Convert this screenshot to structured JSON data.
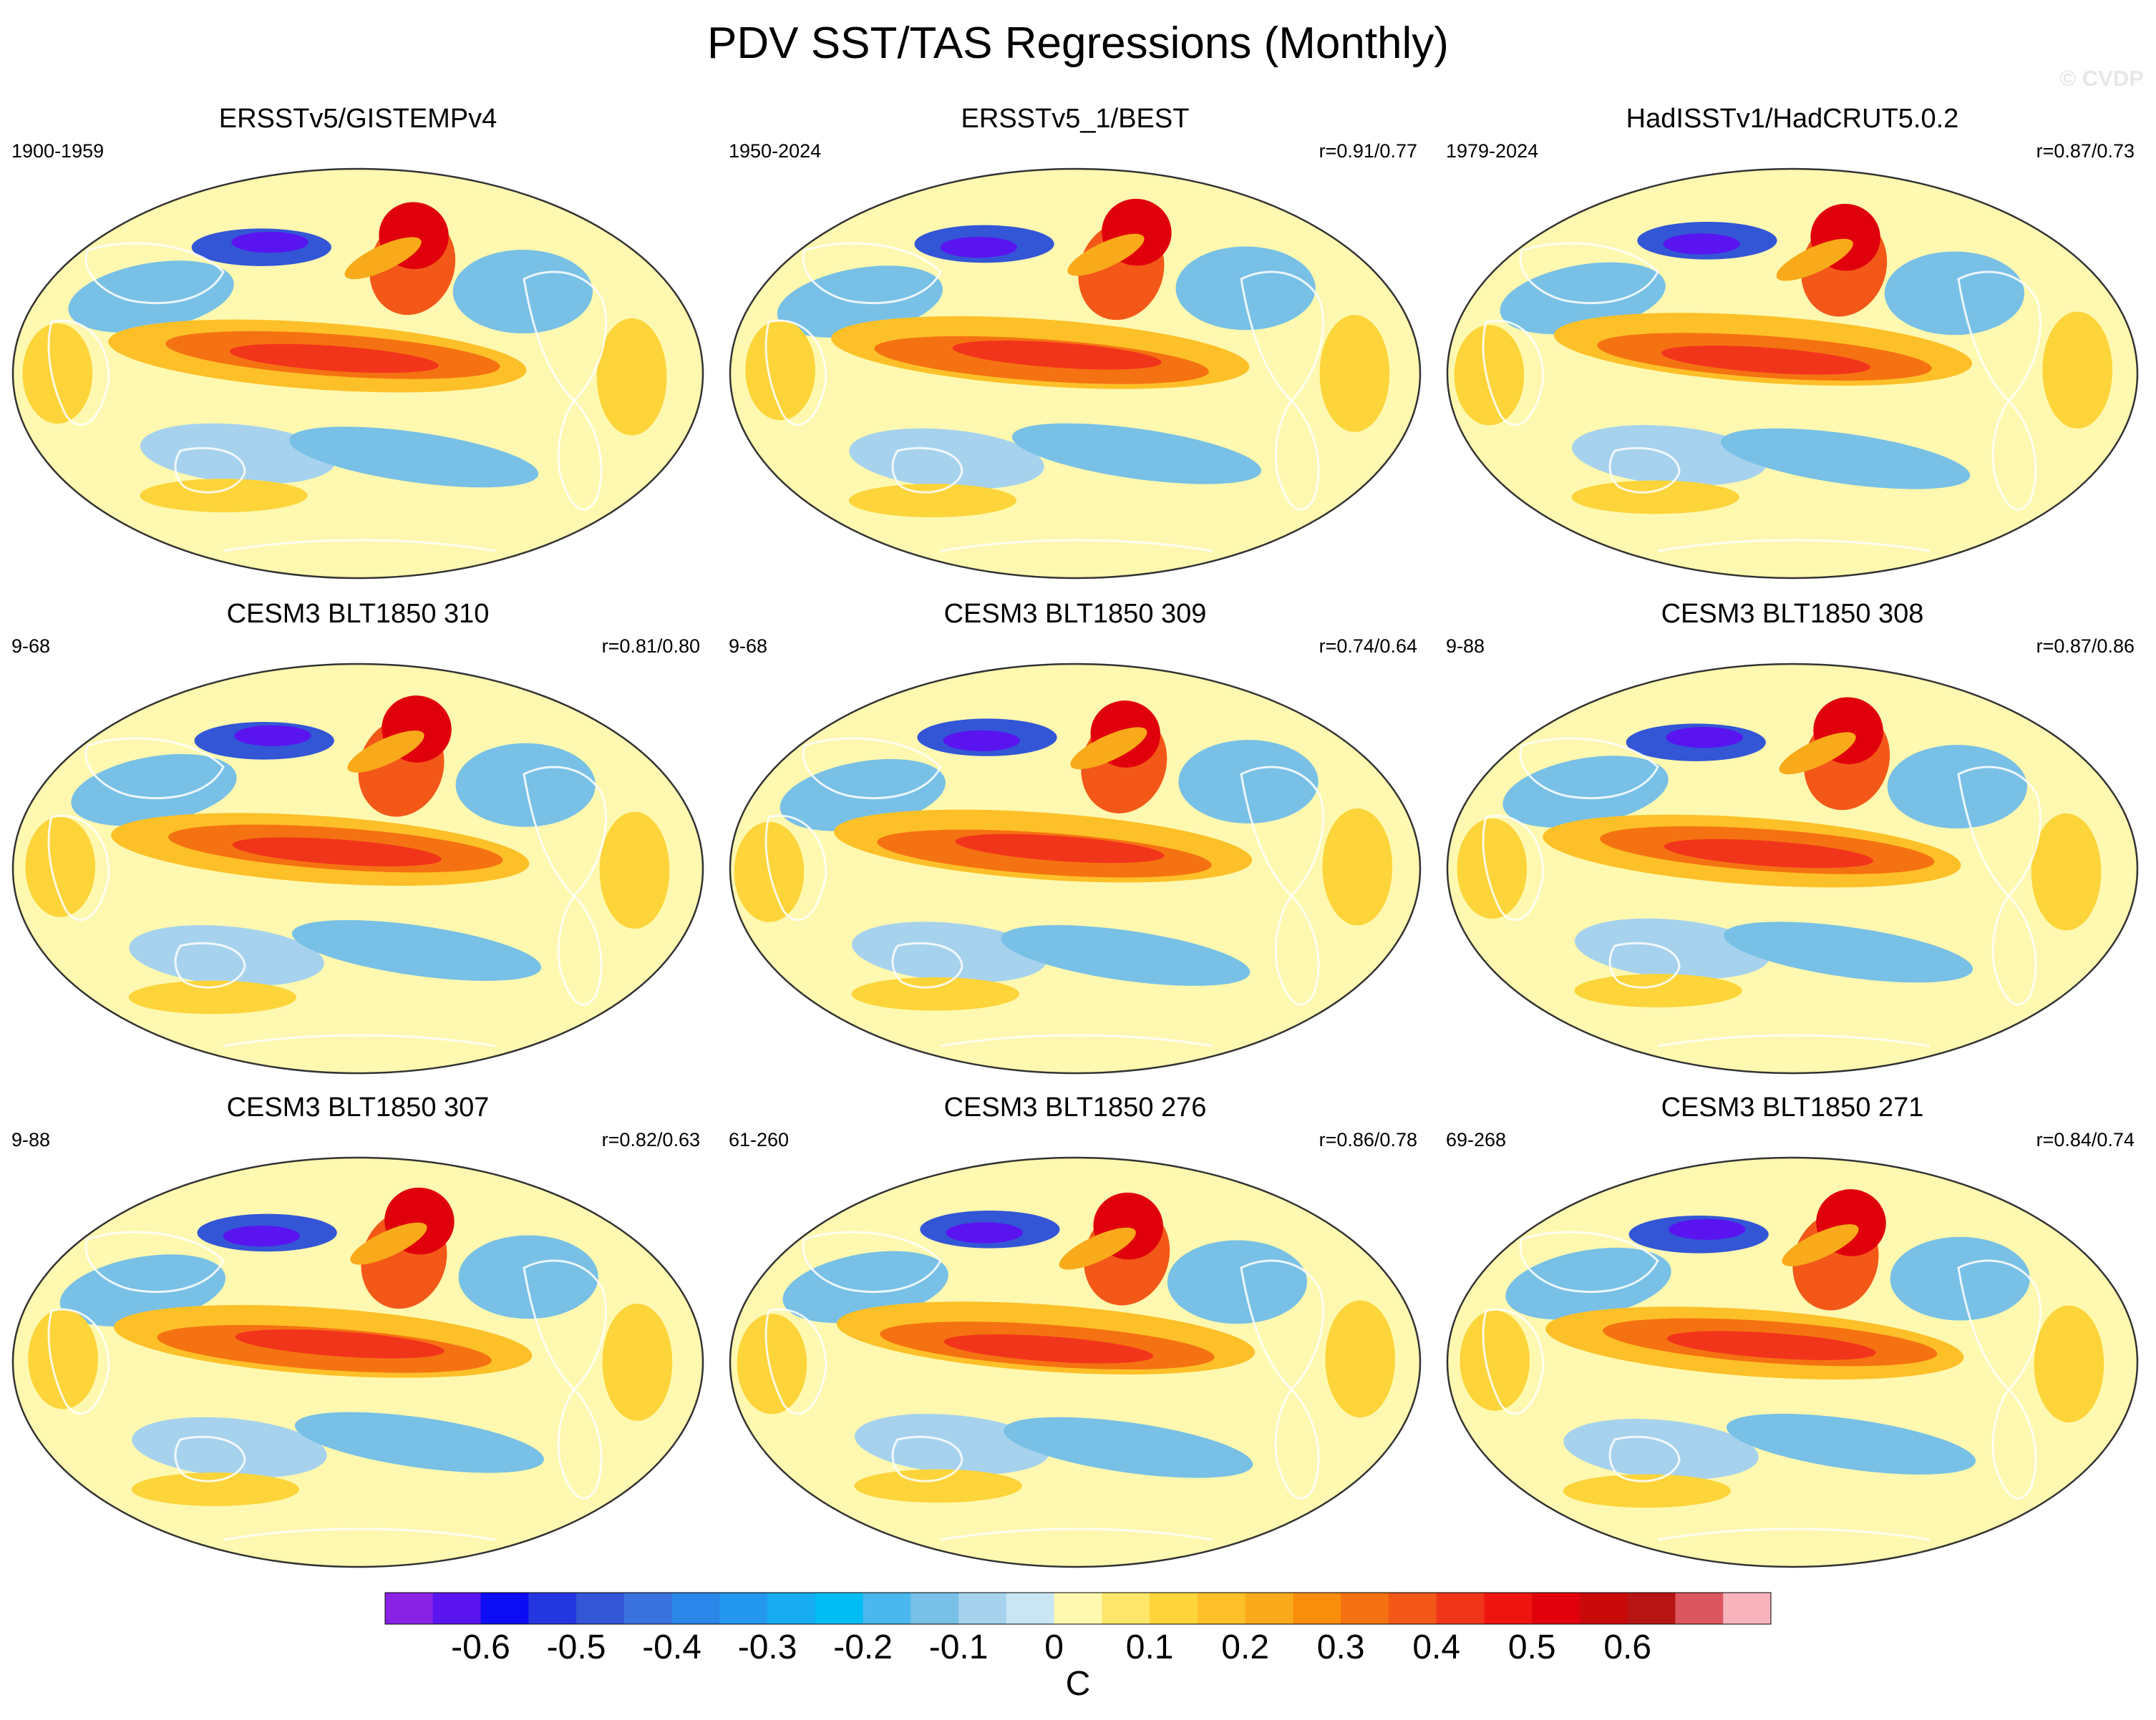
{
  "title": "PDV SST/TAS Regressions (Monthly)",
  "copyright": "© CVDP",
  "panels": [
    {
      "title": "ERSSTv5/GISTEMPv4",
      "left_label": "1900-1959",
      "right_label": ""
    },
    {
      "title": "ERSSTv5_1/BEST",
      "left_label": "1950-2024",
      "right_label": "r=0.91/0.77"
    },
    {
      "title": "HadISSTv1/HadCRUT5.0.2",
      "left_label": "1979-2024",
      "right_label": "r=0.87/0.73"
    },
    {
      "title": "CESM3 BLT1850 310",
      "left_label": "9-68",
      "right_label": "r=0.81/0.80"
    },
    {
      "title": "CESM3 BLT1850 309",
      "left_label": "9-68",
      "right_label": "r=0.74/0.64"
    },
    {
      "title": "CESM3 BLT1850 308",
      "left_label": "9-88",
      "right_label": "r=0.87/0.86"
    },
    {
      "title": "CESM3 BLT1850 307",
      "left_label": "9-88",
      "right_label": "r=0.82/0.63"
    },
    {
      "title": "CESM3 BLT1850 276",
      "left_label": "61-260",
      "right_label": "r=0.86/0.78"
    },
    {
      "title": "CESM3 BLT1850 271",
      "left_label": "69-268",
      "right_label": "r=0.84/0.74"
    }
  ],
  "chart_data": {
    "type": "heatmap",
    "title": "PDV SST/TAS Regressions (Monthly)",
    "projection": "global equal-area (Robinson-like)",
    "units": "C",
    "colorbar": {
      "orientation": "horizontal",
      "levels": [
        -0.65,
        -0.6,
        -0.55,
        -0.5,
        -0.45,
        -0.4,
        -0.35,
        -0.3,
        -0.25,
        -0.2,
        -0.15,
        -0.1,
        -0.05,
        0,
        0.05,
        0.1,
        0.15,
        0.2,
        0.25,
        0.3,
        0.35,
        0.4,
        0.45,
        0.5,
        0.55,
        0.6,
        0.65
      ],
      "tick_labels": [
        "-0.6",
        "-0.5",
        "-0.4",
        "-0.3",
        "-0.2",
        "-0.1",
        "0",
        "0.1",
        "0.2",
        "0.3",
        "0.4",
        "0.5",
        "0.6"
      ],
      "colors": [
        "#8a22e6",
        "#5a14ef",
        "#0c0cf5",
        "#2436e0",
        "#3356d6",
        "#3a72de",
        "#2a86e8",
        "#2497ef",
        "#17abf0",
        "#00bdf4",
        "#4ab8ee",
        "#78c0e6",
        "#a6d2ee",
        "#c9e6f4",
        "#fff8b0",
        "#fde66a",
        "#fdd43a",
        "#fdc028",
        "#f9aa1a",
        "#f98e0c",
        "#f57212",
        "#f35818",
        "#f1351a",
        "#f01410",
        "#e0000c",
        "#c80a0a",
        "#b71414",
        "#dc5660",
        "#f8b4bc"
      ]
    },
    "panels": [
      {
        "dataset": "ERSSTv5/GISTEMPv4",
        "period": "1900-1959",
        "pattern_correlation": null
      },
      {
        "dataset": "ERSSTv5_1/BEST",
        "period": "1950-2024",
        "pattern_correlation": "0.91/0.77"
      },
      {
        "dataset": "HadISSTv1/HadCRUT5.0.2",
        "period": "1979-2024",
        "pattern_correlation": "0.87/0.73"
      },
      {
        "dataset": "CESM3 BLT1850 310",
        "period": "9-68",
        "pattern_correlation": "0.81/0.80"
      },
      {
        "dataset": "CESM3 BLT1850 309",
        "period": "9-68",
        "pattern_correlation": "0.74/0.64"
      },
      {
        "dataset": "CESM3 BLT1850 308",
        "period": "9-88",
        "pattern_correlation": "0.87/0.86"
      },
      {
        "dataset": "CESM3 BLT1850 307",
        "period": "9-88",
        "pattern_correlation": "0.82/0.63"
      },
      {
        "dataset": "CESM3 BLT1850 276",
        "period": "61-260",
        "pattern_correlation": "0.86/0.78"
      },
      {
        "dataset": "CESM3 BLT1850 271",
        "period": "69-268",
        "pattern_correlation": "0.84/0.74"
      }
    ]
  }
}
